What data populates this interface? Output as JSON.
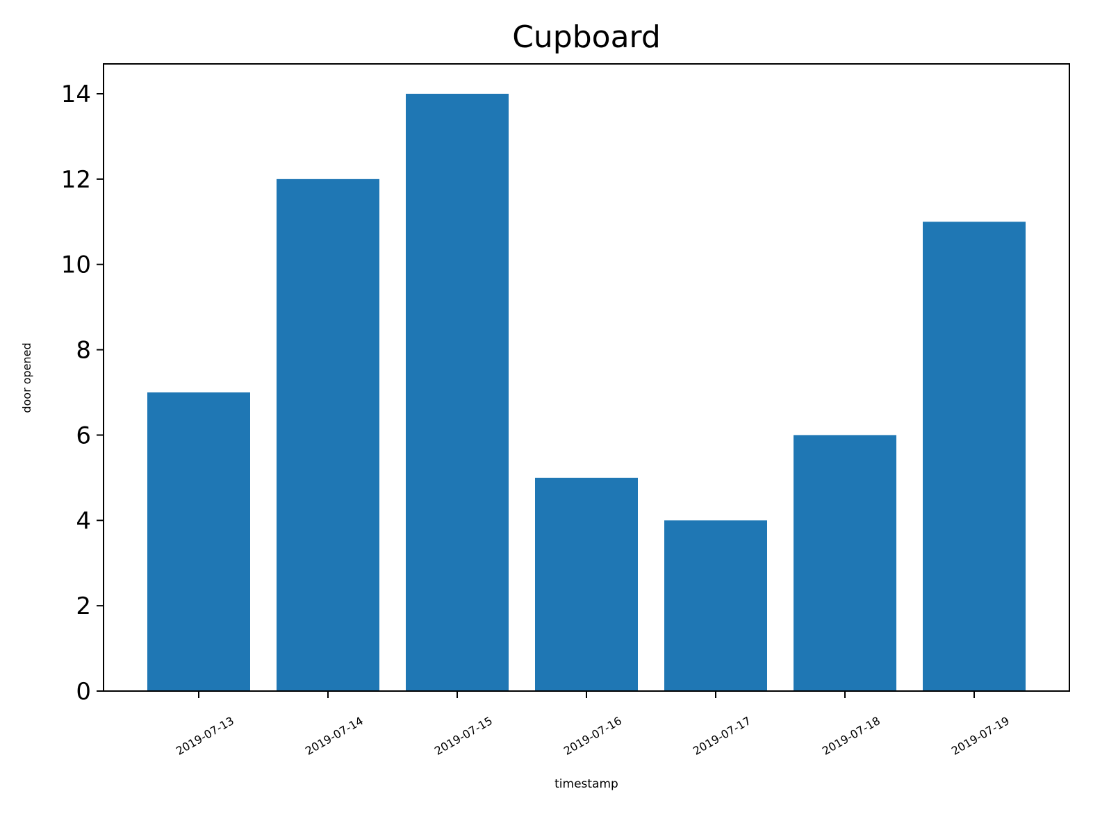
{
  "chart_data": {
    "type": "bar",
    "title": "Cupboard",
    "xlabel": "timestamp",
    "ylabel": "door opened",
    "categories": [
      "2019-07-13",
      "2019-07-14",
      "2019-07-15",
      "2019-07-16",
      "2019-07-17",
      "2019-07-18",
      "2019-07-19"
    ],
    "values": [
      7,
      12,
      14,
      5,
      4,
      6,
      11
    ],
    "ylim": [
      0,
      14.7
    ],
    "yticks": [
      0,
      2,
      4,
      6,
      8,
      10,
      12,
      14
    ],
    "grid": false,
    "bar_color": "#1f77b4"
  }
}
